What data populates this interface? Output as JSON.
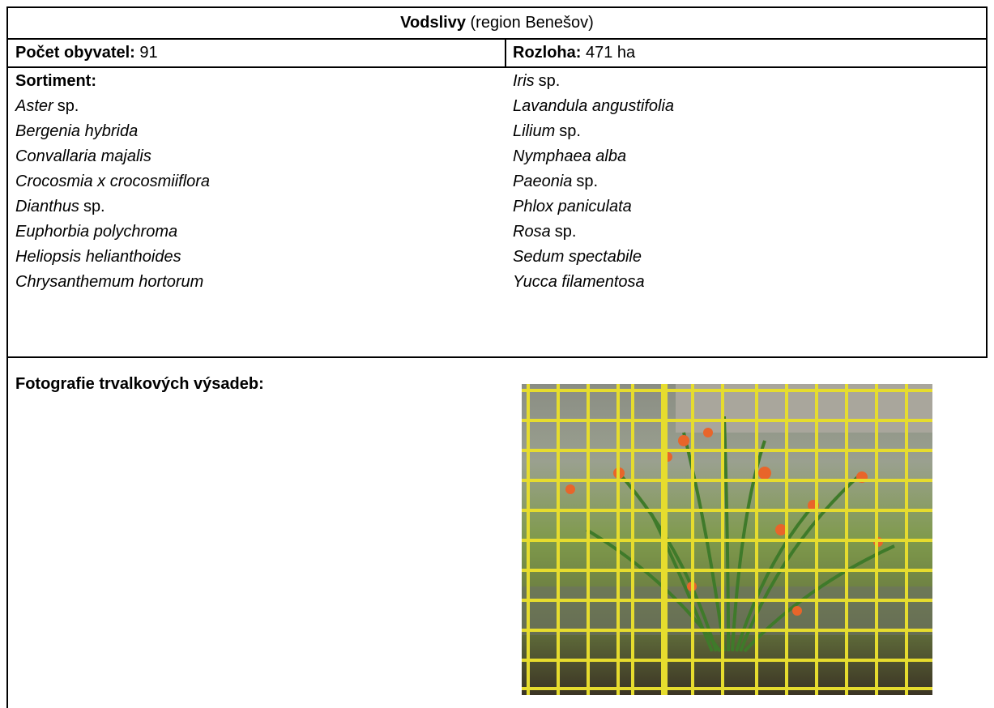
{
  "header": {
    "title": "Vodslivy",
    "subtitle": "(region Benešov)"
  },
  "stats": {
    "population": {
      "label": "Počet obyvatel:",
      "value": "91"
    },
    "area": {
      "label": "Rozloha:",
      "value": "471 ha"
    }
  },
  "assortment": {
    "label": "Sortiment:",
    "left": [
      {
        "name": "Aster",
        "suffix": "sp."
      },
      {
        "name": "Bergenia hybrida"
      },
      {
        "name": "Convallaria majalis"
      },
      {
        "name": "Crocosmia x crocosmiiflora"
      },
      {
        "name": "Dianthus",
        "suffix": "sp."
      },
      {
        "name": "Euphorbia polychroma"
      },
      {
        "name": "Heliopsis helianthoides"
      },
      {
        "name": "Chrysanthemum hortorum"
      }
    ],
    "right": [
      {
        "name": "Iris",
        "suffix": "sp."
      },
      {
        "name": "Lavandula angustifolia"
      },
      {
        "name": "Lilium",
        "suffix": "sp."
      },
      {
        "name": "Nymphaea alba"
      },
      {
        "name": "Paeonia",
        "suffix": "sp."
      },
      {
        "name": "Phlox paniculata"
      },
      {
        "name": "Rosa",
        "suffix": "sp."
      },
      {
        "name": "Sedum spectabile"
      },
      {
        "name": "Yucca filamentosa"
      }
    ]
  },
  "photos": {
    "label": "Fotografie trvalkových výsadeb:"
  }
}
